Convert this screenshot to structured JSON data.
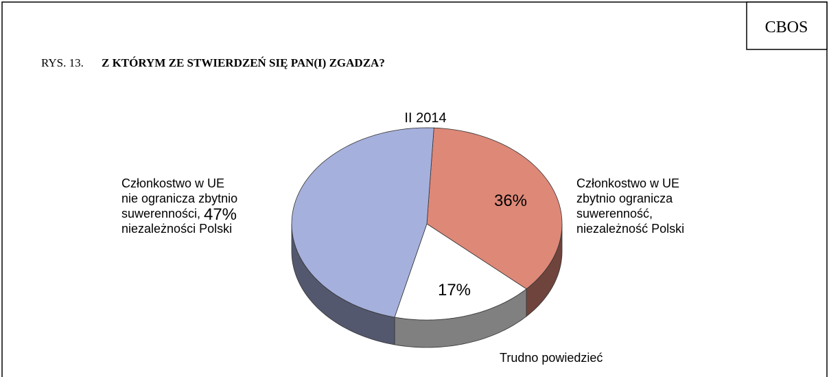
{
  "chart_data": {
    "type": "pie",
    "source": "CBOS",
    "figure_label": "RYS. 13.",
    "title": "Z KTÓRYM ZE STWIERDZEŃ SIĘ PAN(I) ZGADZA?",
    "subtitle": "II 2014",
    "categories": [
      "Członkostwo w UE\nzbytnio ogranicza\nsuwerenność,\nniezależność Polski",
      "Trudno powiedzieć",
      "Członkostwo w UE\nnie ogranicza zbytnio\nsuwerenności,\nniezależności Polski"
    ],
    "values": [
      36,
      17,
      47
    ],
    "value_labels": [
      "36%",
      "17%",
      "47%"
    ],
    "colors": [
      "#de8878",
      "#ffffff",
      "#a6b0dc"
    ]
  }
}
